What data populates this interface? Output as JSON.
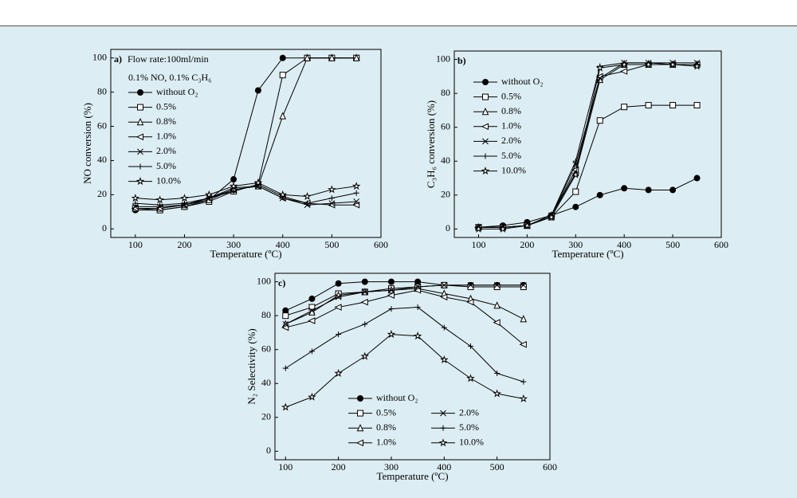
{
  "chart_data": [
    {
      "type": "line",
      "label": "a)",
      "annotations": [
        "Flow rate:100ml/min",
        "0.1% NO, 0.1% C₃H₆"
      ],
      "xlabel": "Temperature (ºC)",
      "ylabel": "NO conversion (%)",
      "x": [
        100,
        150,
        200,
        250,
        300,
        350,
        400,
        450,
        500,
        550
      ],
      "xlim": [
        50,
        600
      ],
      "xticks": [
        100,
        200,
        300,
        400,
        500,
        600
      ],
      "ylim": [
        -5,
        105
      ],
      "yticks": [
        0,
        20,
        40,
        60,
        80,
        100
      ],
      "legend": "upper left",
      "legend_ncol": 1,
      "series": [
        {
          "name": "without O₂",
          "color": "#000000",
          "marker": "filled-circle",
          "values": [
            11,
            11,
            13,
            17,
            29,
            81,
            100,
            100,
            100,
            100
          ]
        },
        {
          "name": "0.5%",
          "color": "#000000",
          "marker": "square",
          "values": [
            12,
            11,
            13,
            16,
            22,
            26,
            90,
            100,
            100,
            100
          ]
        },
        {
          "name": "0.8%",
          "color": "#000000",
          "marker": "triangle-up",
          "values": [
            12,
            12,
            14,
            17,
            23,
            25,
            66,
            100,
            100,
            100
          ]
        },
        {
          "name": "1.0%",
          "color": "#000000",
          "marker": "triangle-left",
          "values": [
            12,
            12,
            14,
            18,
            23,
            25,
            18,
            15,
            14,
            14
          ]
        },
        {
          "name": "2.0%",
          "color": "#000000",
          "marker": "cross",
          "values": [
            13,
            13,
            14,
            18,
            24,
            25,
            18,
            14,
            15,
            16
          ]
        },
        {
          "name": "5.0%",
          "color": "#000000",
          "marker": "plus",
          "values": [
            15,
            14,
            15,
            18,
            22,
            26,
            19,
            15,
            18,
            21
          ]
        },
        {
          "name": "10.0%",
          "color": "#000000",
          "marker": "star",
          "values": [
            18,
            17,
            18,
            20,
            25,
            27,
            20,
            19,
            23,
            25
          ]
        }
      ]
    },
    {
      "type": "line",
      "label": "b)",
      "xlabel": "Temperature (ºC)",
      "ylabel": "C₃H₆ conversion (%)",
      "x": [
        100,
        150,
        200,
        250,
        300,
        350,
        400,
        450,
        500,
        550
      ],
      "xlim": [
        50,
        600
      ],
      "xticks": [
        100,
        200,
        300,
        400,
        500,
        600
      ],
      "ylim": [
        -5,
        105
      ],
      "yticks": [
        0,
        20,
        40,
        60,
        80,
        100
      ],
      "legend": "upper left",
      "legend_ncol": 1,
      "series": [
        {
          "name": "without O₂",
          "color": "#000000",
          "marker": "filled-circle",
          "values": [
            1,
            2,
            4,
            8,
            13,
            20,
            24,
            23,
            23,
            30
          ]
        },
        {
          "name": "0.5%",
          "color": "#000000",
          "marker": "square",
          "values": [
            1,
            1,
            2,
            7,
            22,
            64,
            72,
            73,
            73,
            73
          ]
        },
        {
          "name": "0.8%",
          "color": "#000000",
          "marker": "triangle-up",
          "values": [
            1,
            1,
            2,
            8,
            33,
            88,
            97,
            97,
            97,
            97
          ]
        },
        {
          "name": "1.0%",
          "color": "#000000",
          "marker": "triangle-left",
          "values": [
            1,
            1,
            2,
            8,
            35,
            90,
            93,
            97,
            97,
            97
          ]
        },
        {
          "name": "2.0%",
          "color": "#000000",
          "marker": "cross",
          "values": [
            1,
            1,
            2,
            8,
            38,
            89,
            98,
            98,
            98,
            98
          ]
        },
        {
          "name": "5.0%",
          "color": "#000000",
          "marker": "plus",
          "values": [
            1,
            1,
            2,
            8,
            40,
            96,
            98,
            98,
            97,
            97
          ]
        },
        {
          "name": "10.0%",
          "color": "#000000",
          "marker": "star",
          "values": [
            0,
            0,
            2,
            7,
            32,
            95,
            97,
            97,
            97,
            96
          ]
        }
      ]
    },
    {
      "type": "line",
      "label": "c)",
      "xlabel": "Temperature (ºC)",
      "ylabel": "N₂ Selectivity (%)",
      "x": [
        100,
        150,
        200,
        250,
        300,
        350,
        400,
        450,
        500,
        550
      ],
      "xlim": [
        80,
        600
      ],
      "xticks": [
        100,
        200,
        300,
        400,
        500,
        600
      ],
      "ylim": [
        -5,
        105
      ],
      "yticks": [
        0,
        20,
        40,
        60,
        80,
        100
      ],
      "legend": "lower center",
      "legend_ncol": 2,
      "series": [
        {
          "name": "without O₂",
          "color": "#000000",
          "marker": "filled-circle",
          "values": [
            83,
            90,
            99,
            100,
            100,
            100,
            98,
            98,
            98,
            98
          ]
        },
        {
          "name": "0.5%",
          "color": "#000000",
          "marker": "square",
          "values": [
            80,
            85,
            93,
            94,
            96,
            97,
            98,
            97,
            97,
            97
          ]
        },
        {
          "name": "0.8%",
          "color": "#000000",
          "marker": "triangle-up",
          "values": [
            75,
            82,
            92,
            94,
            95,
            96,
            93,
            90,
            86,
            78
          ]
        },
        {
          "name": "1.0%",
          "color": "#000000",
          "marker": "triangle-left",
          "values": [
            73,
            77,
            85,
            88,
            92,
            95,
            91,
            88,
            76,
            63
          ]
        },
        {
          "name": "2.0%",
          "color": "#000000",
          "marker": "cross",
          "values": [
            75,
            83,
            91,
            94,
            95,
            97,
            98,
            98,
            98,
            98
          ]
        },
        {
          "name": "5.0%",
          "color": "#000000",
          "marker": "plus",
          "values": [
            49,
            59,
            69,
            75,
            84,
            85,
            73,
            62,
            46,
            41
          ]
        },
        {
          "name": "10.0%",
          "color": "#000000",
          "marker": "star",
          "values": [
            26,
            32,
            46,
            56,
            69,
            68,
            54,
            43,
            34,
            31
          ]
        }
      ]
    }
  ]
}
